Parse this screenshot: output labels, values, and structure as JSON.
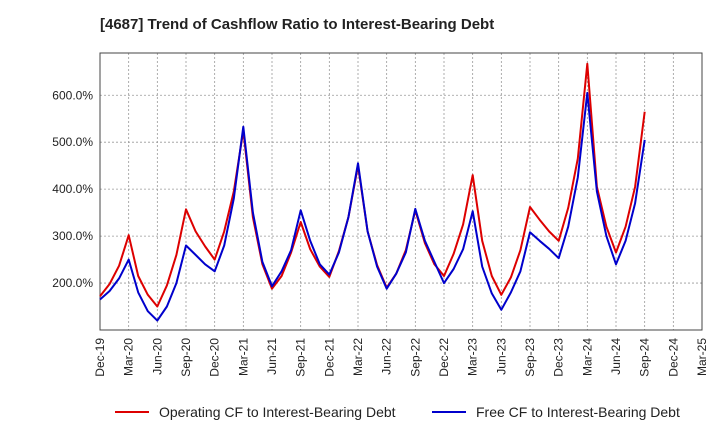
{
  "title": "[4687]  Trend of Cashflow Ratio to Interest-Bearing Debt",
  "colors": {
    "series1": "#dd0000",
    "series2": "#0000cc"
  },
  "chart_data": {
    "type": "line",
    "title": "[4687]  Trend of Cashflow Ratio to Interest-Bearing Debt",
    "xlabel": "",
    "ylabel": "",
    "grid": true,
    "legend_position": "bottom",
    "ylim": [
      100,
      690
    ],
    "yticks": [
      200,
      300,
      400,
      500,
      600
    ],
    "ytick_labels": [
      "200.0%",
      "300.0%",
      "400.0%",
      "500.0%",
      "600.0%"
    ],
    "xticks": [
      "Dec-19",
      "Mar-20",
      "Jun-20",
      "Sep-20",
      "Dec-20",
      "Mar-21",
      "Jun-21",
      "Sep-21",
      "Dec-21",
      "Mar-22",
      "Jun-22",
      "Sep-22",
      "Dec-22",
      "Mar-23",
      "Jun-23",
      "Sep-23",
      "Dec-23",
      "Mar-24",
      "Jun-24",
      "Sep-24",
      "Dec-24",
      "Mar-25"
    ],
    "x": [
      "2019-12",
      "2020-01",
      "2020-02",
      "2020-03",
      "2020-04",
      "2020-05",
      "2020-06",
      "2020-07",
      "2020-08",
      "2020-09",
      "2020-10",
      "2020-11",
      "2020-12",
      "2021-01",
      "2021-02",
      "2021-03",
      "2021-04",
      "2021-05",
      "2021-06",
      "2021-07",
      "2021-08",
      "2021-09",
      "2021-10",
      "2021-11",
      "2021-12",
      "2022-01",
      "2022-02",
      "2022-03",
      "2022-04",
      "2022-05",
      "2022-06",
      "2022-07",
      "2022-08",
      "2022-09",
      "2022-10",
      "2022-11",
      "2022-12",
      "2023-01",
      "2023-02",
      "2023-03",
      "2023-04",
      "2023-05",
      "2023-06",
      "2023-07",
      "2023-08",
      "2023-09",
      "2023-10",
      "2023-11",
      "2023-12",
      "2024-01",
      "2024-02",
      "2024-03",
      "2024-04",
      "2024-05",
      "2024-06",
      "2024-07",
      "2024-08",
      "2024-09"
    ],
    "series": [
      {
        "name": "Operating CF to Interest-Bearing Debt",
        "values": [
          172,
          198,
          237,
          302,
          215,
          175,
          150,
          195,
          260,
          357,
          310,
          278,
          250,
          310,
          395,
          525,
          340,
          240,
          188,
          215,
          265,
          330,
          272,
          235,
          213,
          268,
          340,
          450,
          310,
          238,
          190,
          220,
          270,
          355,
          285,
          240,
          215,
          262,
          325,
          430,
          290,
          215,
          175,
          212,
          270,
          362,
          335,
          310,
          290,
          360,
          465,
          667,
          405,
          320,
          265,
          320,
          405,
          565
        ]
      },
      {
        "name": "Free CF to Interest-Bearing Debt",
        "values": [
          165,
          183,
          210,
          250,
          180,
          140,
          120,
          150,
          200,
          280,
          260,
          240,
          225,
          280,
          380,
          533,
          350,
          245,
          193,
          225,
          270,
          355,
          290,
          240,
          218,
          265,
          340,
          455,
          310,
          235,
          188,
          220,
          265,
          358,
          290,
          245,
          200,
          230,
          272,
          353,
          235,
          178,
          143,
          180,
          225,
          308,
          290,
          273,
          253,
          320,
          425,
          605,
          395,
          300,
          240,
          290,
          370,
          505
        ]
      }
    ]
  },
  "legend": [
    {
      "label": "Operating CF to Interest-Bearing Debt"
    },
    {
      "label": "Free CF to Interest-Bearing Debt"
    }
  ]
}
